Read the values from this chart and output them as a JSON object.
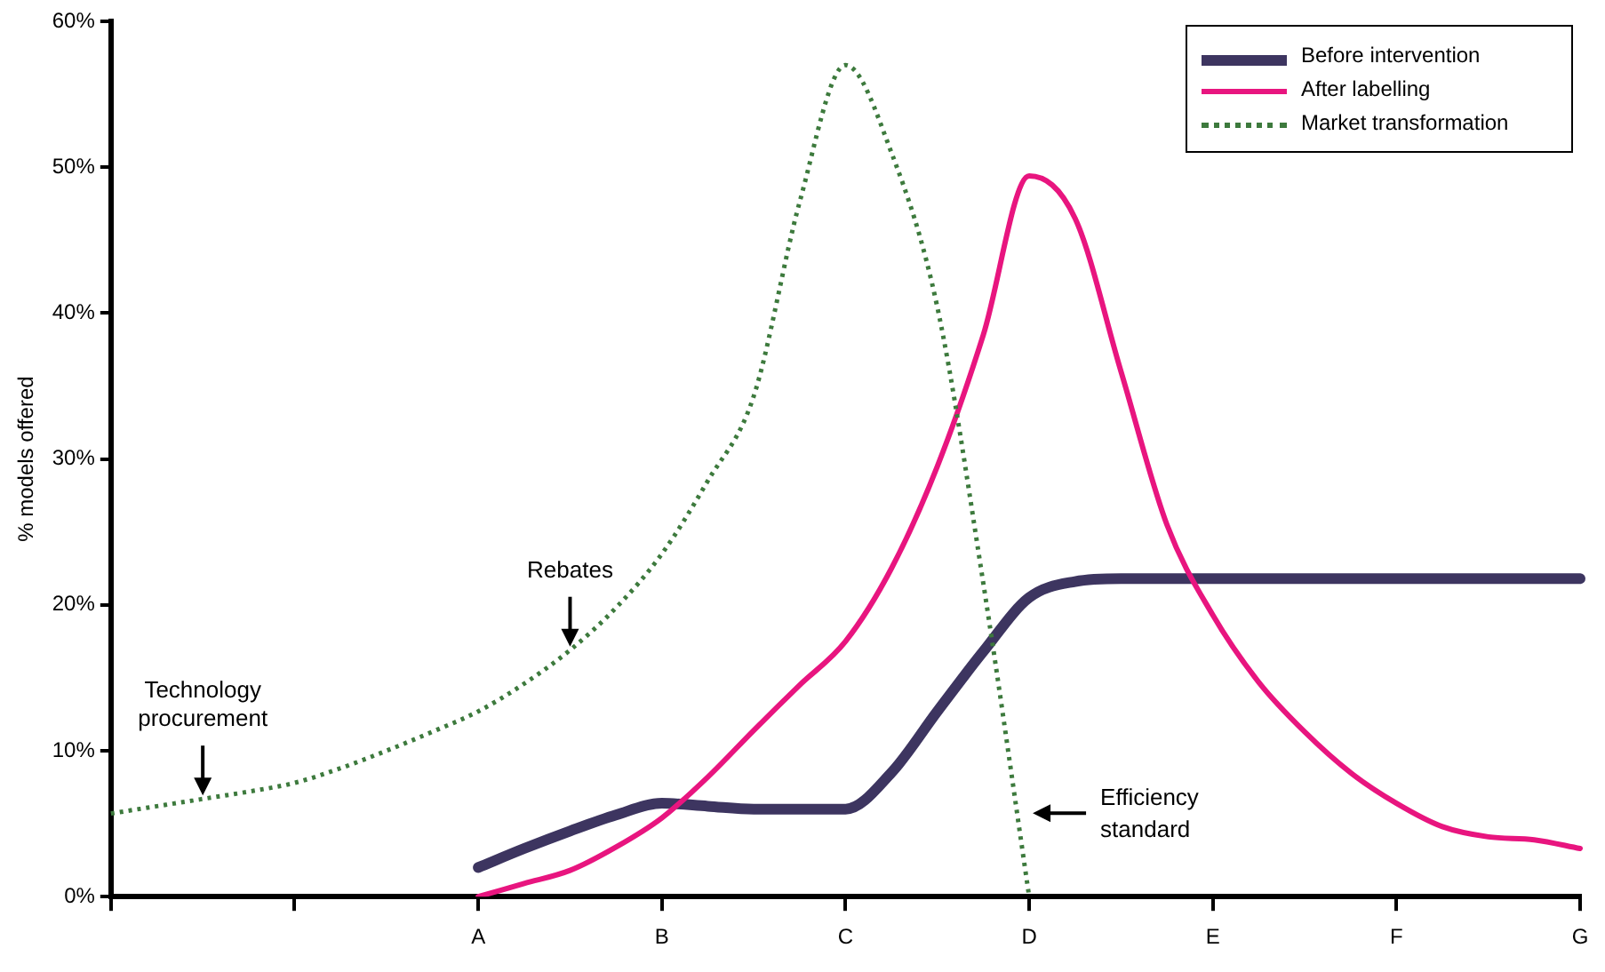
{
  "chart_data": {
    "type": "line",
    "ylabel": "% models offered",
    "categories": [
      null,
      null,
      null,
      null,
      null,
      null,
      null,
      null,
      "A",
      null,
      null,
      null,
      "B",
      null,
      null,
      null,
      "C",
      null,
      null,
      null,
      "D",
      null,
      null,
      null,
      "E",
      null,
      null,
      null,
      "F",
      null,
      null,
      null,
      "G"
    ],
    "ylim": [
      0,
      60
    ],
    "yticks": [
      {
        "value": 0,
        "label": "0%"
      },
      {
        "value": 10,
        "label": "10%"
      },
      {
        "value": 20,
        "label": "20%"
      },
      {
        "value": 30,
        "label": "30%"
      },
      {
        "value": 40,
        "label": "40%"
      },
      {
        "value": 50,
        "label": "50%"
      },
      {
        "value": 60,
        "label": "60%"
      }
    ],
    "grid": false,
    "legend": "top right",
    "marker": "none",
    "series": [
      {
        "name": "Before intervention",
        "color": "#3d3560",
        "line_style": "solid",
        "values": [
          null,
          null,
          null,
          null,
          null,
          null,
          null,
          null,
          2,
          3.3,
          4.5,
          5.6,
          6.4,
          6.2,
          6,
          6,
          6,
          8.5,
          12.7,
          16.8,
          20.5,
          21.6,
          21.8,
          21.8,
          21.8,
          21.8,
          21.8,
          21.8,
          21.8,
          21.8,
          21.8,
          21.8,
          21.8
        ]
      },
      {
        "name": "After labelling",
        "color": "#e8157f",
        "line_style": "solid",
        "values": [
          null,
          null,
          null,
          null,
          null,
          null,
          null,
          null,
          0,
          0.9,
          1.8,
          3.4,
          5.4,
          8.2,
          11.4,
          14.5,
          17.5,
          22.5,
          29.5,
          38.5,
          49.4,
          46.5,
          36,
          25.5,
          19.3,
          14.7,
          11.3,
          8.5,
          6.4,
          4.8,
          4.1,
          3.9,
          3.3
        ]
      },
      {
        "name": "Market transformation",
        "color": "#3d7a3d",
        "line_style": "dotted",
        "values": [
          5.7,
          6.2,
          6.7,
          7.2,
          7.8,
          8.8,
          10,
          11.3,
          12.7,
          14.6,
          16.9,
          19.8,
          23.5,
          28.5,
          34.3,
          47.6,
          57,
          51,
          40.4,
          21.5,
          0,
          null,
          null,
          null,
          null,
          null,
          null,
          null,
          null,
          null,
          null,
          null,
          null
        ]
      }
    ],
    "annotations": [
      {
        "text": "Technology procurement",
        "y": 6.7
      },
      {
        "text": "Rebates",
        "y": 16.9
      },
      "Efficiency standard"
    ]
  }
}
